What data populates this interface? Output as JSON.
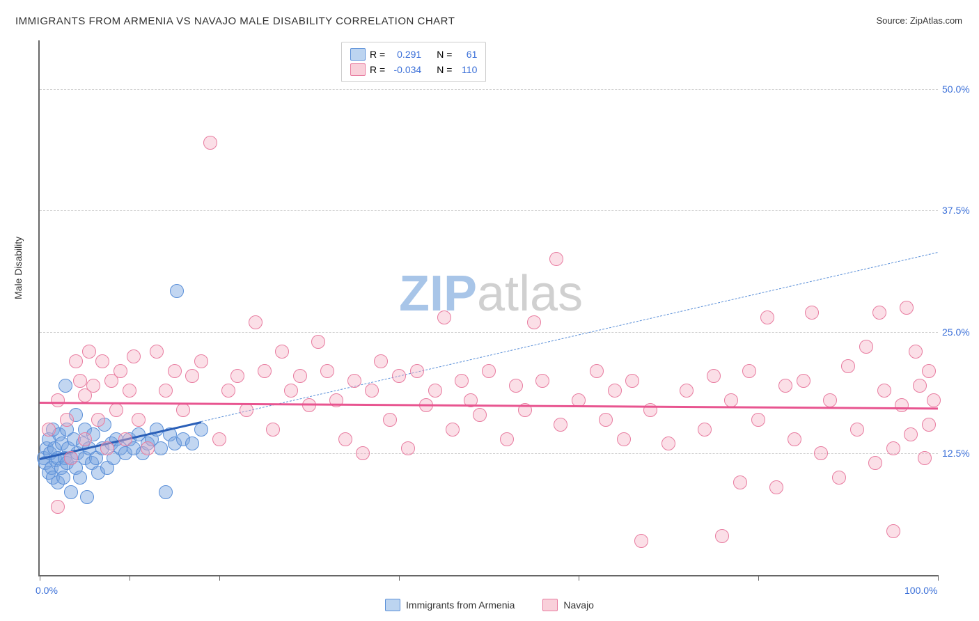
{
  "title": "IMMIGRANTS FROM ARMENIA VS NAVAJO MALE DISABILITY CORRELATION CHART",
  "source": "Source: ZipAtlas.com",
  "y_axis_label": "Male Disability",
  "watermark": {
    "zip": "ZIP",
    "atlas": "atlas",
    "zip_color": "#a8c5e8",
    "atlas_color": "#d0d0d0"
  },
  "chart": {
    "type": "scatter",
    "x_domain": [
      0,
      100
    ],
    "y_domain": [
      0,
      55
    ],
    "background_color": "#ffffff",
    "grid_color": "#d0d0d0",
    "marker_radius": 9,
    "marker_border_width": 1.2,
    "y_ticks": [
      {
        "v": 12.5,
        "label": "12.5%"
      },
      {
        "v": 25.0,
        "label": "25.0%"
      },
      {
        "v": 37.5,
        "label": "37.5%"
      },
      {
        "v": 50.0,
        "label": "50.0%"
      }
    ],
    "x_ticks": [
      0,
      10,
      20,
      40,
      60,
      80,
      100
    ],
    "x_labels": [
      {
        "v": 0,
        "label": "0.0%"
      },
      {
        "v": 100,
        "label": "100.0%"
      }
    ]
  },
  "stats_box": {
    "rows": [
      {
        "swatch_fill": "#bcd4f0",
        "swatch_border": "#5a8fd8",
        "r_label": "R =",
        "r_value": "0.291",
        "n_label": "N =",
        "n_value": "61"
      },
      {
        "swatch_fill": "#f9d0da",
        "swatch_border": "#e87ca0",
        "r_label": "R =",
        "r_value": "-0.034",
        "n_label": "N =",
        "n_value": "110"
      }
    ]
  },
  "series": [
    {
      "name": "Immigrants from Armenia",
      "fill": "rgba(120,165,225,0.45)",
      "border": "#5a8fd8",
      "trend": {
        "x1": 0,
        "y1": 12.0,
        "x2": 18,
        "y2": 15.8,
        "color": "#2a5fb8",
        "width": 3
      },
      "trend_dash": {
        "x1": 18,
        "y1": 15.8,
        "x2": 100,
        "y2": 33.2,
        "color": "#5a8fd8"
      },
      "points": [
        [
          0.5,
          12
        ],
        [
          0.6,
          11.5
        ],
        [
          0.8,
          13
        ],
        [
          1,
          10.5
        ],
        [
          1,
          14
        ],
        [
          1.2,
          12.5
        ],
        [
          1.3,
          11
        ],
        [
          1.5,
          15
        ],
        [
          1.5,
          10
        ],
        [
          1.6,
          13
        ],
        [
          1.8,
          11.8
        ],
        [
          2,
          12
        ],
        [
          2,
          9.5
        ],
        [
          2.2,
          14.5
        ],
        [
          2.4,
          11
        ],
        [
          2.5,
          13.5
        ],
        [
          2.6,
          10
        ],
        [
          2.8,
          12
        ],
        [
          2.9,
          19.5
        ],
        [
          3,
          11.5
        ],
        [
          3,
          15
        ],
        [
          3.2,
          13
        ],
        [
          3.5,
          12
        ],
        [
          3.5,
          8.5
        ],
        [
          3.8,
          14
        ],
        [
          4,
          11
        ],
        [
          4,
          16.5
        ],
        [
          4.2,
          12.5
        ],
        [
          4.5,
          10
        ],
        [
          4.8,
          13.5
        ],
        [
          5,
          15
        ],
        [
          5,
          12
        ],
        [
          5.3,
          8
        ],
        [
          5.5,
          13
        ],
        [
          5.8,
          11.5
        ],
        [
          6,
          14.5
        ],
        [
          6.3,
          12
        ],
        [
          6.5,
          10.5
        ],
        [
          7,
          13
        ],
        [
          7.2,
          15.5
        ],
        [
          7.5,
          11
        ],
        [
          8,
          13.5
        ],
        [
          8.2,
          12
        ],
        [
          8.5,
          14
        ],
        [
          9,
          13
        ],
        [
          9.5,
          12.5
        ],
        [
          10,
          14
        ],
        [
          10.5,
          13
        ],
        [
          11,
          14.5
        ],
        [
          11.5,
          12.5
        ],
        [
          12,
          13.5
        ],
        [
          12.5,
          14
        ],
        [
          13,
          15
        ],
        [
          13.5,
          13
        ],
        [
          14,
          8.5
        ],
        [
          14.5,
          14.5
        ],
        [
          15,
          13.5
        ],
        [
          15.3,
          29.2
        ],
        [
          16,
          14
        ],
        [
          17,
          13.5
        ],
        [
          18,
          15
        ]
      ]
    },
    {
      "name": "Navajo",
      "fill": "rgba(245,175,195,0.4)",
      "border": "#e87ca0",
      "trend": {
        "x1": 0,
        "y1": 17.8,
        "x2": 100,
        "y2": 17.2,
        "color": "#e85590",
        "width": 2.5
      },
      "points": [
        [
          1,
          15
        ],
        [
          2,
          18
        ],
        [
          2,
          7
        ],
        [
          3,
          16
        ],
        [
          3.5,
          12
        ],
        [
          4,
          22
        ],
        [
          4.5,
          20
        ],
        [
          5,
          18.5
        ],
        [
          5,
          14
        ],
        [
          5.5,
          23
        ],
        [
          6,
          19.5
        ],
        [
          6.5,
          16
        ],
        [
          7,
          22
        ],
        [
          7.5,
          13
        ],
        [
          8,
          20
        ],
        [
          8.5,
          17
        ],
        [
          9,
          21
        ],
        [
          9.5,
          14
        ],
        [
          10,
          19
        ],
        [
          10.5,
          22.5
        ],
        [
          11,
          16
        ],
        [
          12,
          13
        ],
        [
          13,
          23
        ],
        [
          14,
          19
        ],
        [
          15,
          21
        ],
        [
          16,
          17
        ],
        [
          17,
          20.5
        ],
        [
          18,
          22
        ],
        [
          19,
          44.5
        ],
        [
          20,
          14
        ],
        [
          21,
          19
        ],
        [
          22,
          20.5
        ],
        [
          23,
          17
        ],
        [
          24,
          26
        ],
        [
          25,
          21
        ],
        [
          26,
          15
        ],
        [
          27,
          23
        ],
        [
          28,
          19
        ],
        [
          29,
          20.5
        ],
        [
          30,
          17.5
        ],
        [
          31,
          24
        ],
        [
          32,
          21
        ],
        [
          33,
          18
        ],
        [
          34,
          14
        ],
        [
          35,
          20
        ],
        [
          36,
          12.5
        ],
        [
          37,
          19
        ],
        [
          38,
          22
        ],
        [
          39,
          16
        ],
        [
          40,
          20.5
        ],
        [
          41,
          13
        ],
        [
          42,
          21
        ],
        [
          43,
          17.5
        ],
        [
          44,
          19
        ],
        [
          45,
          26.5
        ],
        [
          46,
          15
        ],
        [
          47,
          20
        ],
        [
          48,
          18
        ],
        [
          49,
          16.5
        ],
        [
          50,
          21
        ],
        [
          52,
          14
        ],
        [
          53,
          19.5
        ],
        [
          54,
          17
        ],
        [
          55,
          26
        ],
        [
          56,
          20
        ],
        [
          57.5,
          32.5
        ],
        [
          58,
          15.5
        ],
        [
          60,
          18
        ],
        [
          62,
          21
        ],
        [
          63,
          16
        ],
        [
          64,
          19
        ],
        [
          65,
          14
        ],
        [
          66,
          20
        ],
        [
          67,
          3.5
        ],
        [
          68,
          17
        ],
        [
          70,
          13.5
        ],
        [
          72,
          19
        ],
        [
          74,
          15
        ],
        [
          75,
          20.5
        ],
        [
          76,
          4
        ],
        [
          77,
          18
        ],
        [
          78,
          9.5
        ],
        [
          79,
          21
        ],
        [
          80,
          16
        ],
        [
          81,
          26.5
        ],
        [
          82,
          9
        ],
        [
          83,
          19.5
        ],
        [
          84,
          14
        ],
        [
          85,
          20
        ],
        [
          86,
          27
        ],
        [
          87,
          12.5
        ],
        [
          88,
          18
        ],
        [
          89,
          10
        ],
        [
          90,
          21.5
        ],
        [
          91,
          15
        ],
        [
          92,
          23.5
        ],
        [
          93,
          11.5
        ],
        [
          93.5,
          27
        ],
        [
          94,
          19
        ],
        [
          95,
          13
        ],
        [
          95,
          4.5
        ],
        [
          96,
          17.5
        ],
        [
          96.5,
          27.5
        ],
        [
          97,
          14.5
        ],
        [
          97.5,
          23
        ],
        [
          98,
          19.5
        ],
        [
          98.5,
          12
        ],
        [
          99,
          21
        ],
        [
          99,
          15.5
        ],
        [
          99.5,
          18
        ]
      ]
    }
  ],
  "bottom_legend": [
    {
      "label": "Immigrants from Armenia",
      "fill": "#bcd4f0",
      "border": "#5a8fd8"
    },
    {
      "label": "Navajo",
      "fill": "#f9d0da",
      "border": "#e87ca0"
    }
  ]
}
